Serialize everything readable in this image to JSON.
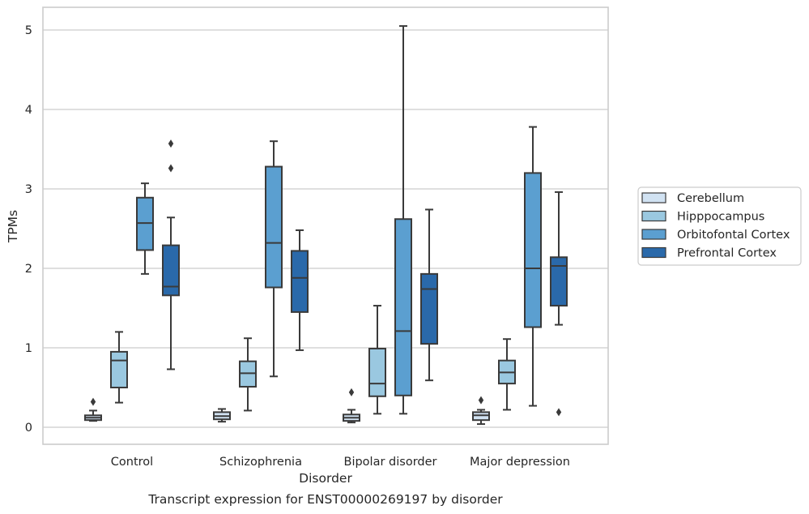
{
  "chart_data": {
    "type": "box",
    "title": "",
    "caption": "Transcript expression for ENST00000269197 by disorder",
    "xlabel": "Disorder",
    "ylabel": "TPMs",
    "ylim": [
      -0.2,
      5.3
    ],
    "yticks": [
      0,
      1,
      2,
      3,
      4,
      5
    ],
    "grid": "horizontal",
    "legend_position": "right",
    "categories": [
      "Control",
      "Schizophrenia",
      "Bipolar disorder",
      "Major depression"
    ],
    "series": [
      {
        "name": "Cerebellum",
        "color": "#d1e2f2",
        "boxes": [
          {
            "whisker_low": 0.08,
            "q1": 0.09,
            "median": 0.12,
            "q3": 0.15,
            "whisker_high": 0.21,
            "outliers": [
              0.32
            ]
          },
          {
            "whisker_low": 0.07,
            "q1": 0.1,
            "median": 0.14,
            "q3": 0.19,
            "whisker_high": 0.23,
            "outliers": []
          },
          {
            "whisker_low": 0.06,
            "q1": 0.08,
            "median": 0.12,
            "q3": 0.16,
            "whisker_high": 0.22,
            "outliers": [
              0.44
            ]
          },
          {
            "whisker_low": 0.04,
            "q1": 0.09,
            "median": 0.15,
            "q3": 0.19,
            "whisker_high": 0.22,
            "outliers": [
              0.34
            ]
          }
        ]
      },
      {
        "name": "Hipppocampus",
        "color": "#9ac8e0",
        "boxes": [
          {
            "whisker_low": 0.31,
            "q1": 0.5,
            "median": 0.84,
            "q3": 0.95,
            "whisker_high": 1.2,
            "outliers": []
          },
          {
            "whisker_low": 0.21,
            "q1": 0.51,
            "median": 0.68,
            "q3": 0.83,
            "whisker_high": 1.12,
            "outliers": []
          },
          {
            "whisker_low": 0.17,
            "q1": 0.39,
            "median": 0.55,
            "q3": 0.99,
            "whisker_high": 1.53,
            "outliers": []
          },
          {
            "whisker_low": 0.22,
            "q1": 0.55,
            "median": 0.69,
            "q3": 0.84,
            "whisker_high": 1.11,
            "outliers": []
          }
        ]
      },
      {
        "name": "Orbitofontal Cortex",
        "color": "#5b9fd0",
        "boxes": [
          {
            "whisker_low": 1.93,
            "q1": 2.23,
            "median": 2.57,
            "q3": 2.89,
            "whisker_high": 3.07,
            "outliers": []
          },
          {
            "whisker_low": 0.64,
            "q1": 1.76,
            "median": 2.32,
            "q3": 3.28,
            "whisker_high": 3.6,
            "outliers": []
          },
          {
            "whisker_low": 0.17,
            "q1": 0.4,
            "median": 1.21,
            "q3": 2.62,
            "whisker_high": 5.05,
            "outliers": []
          },
          {
            "whisker_low": 0.27,
            "q1": 1.26,
            "median": 2.0,
            "q3": 3.2,
            "whisker_high": 3.78,
            "outliers": []
          }
        ]
      },
      {
        "name": "Prefrontal Cortex",
        "color": "#2a69aa",
        "boxes": [
          {
            "whisker_low": 0.73,
            "q1": 1.66,
            "median": 1.77,
            "q3": 2.29,
            "whisker_high": 2.64,
            "outliers": [
              3.26,
              3.57
            ]
          },
          {
            "whisker_low": 0.97,
            "q1": 1.45,
            "median": 1.88,
            "q3": 2.22,
            "whisker_high": 2.48,
            "outliers": []
          },
          {
            "whisker_low": 0.59,
            "q1": 1.05,
            "median": 1.74,
            "q3": 1.93,
            "whisker_high": 2.74,
            "outliers": []
          },
          {
            "whisker_low": 1.29,
            "q1": 1.53,
            "median": 2.03,
            "q3": 2.14,
            "whisker_high": 2.96,
            "outliers": [
              0.19
            ]
          }
        ]
      }
    ]
  }
}
